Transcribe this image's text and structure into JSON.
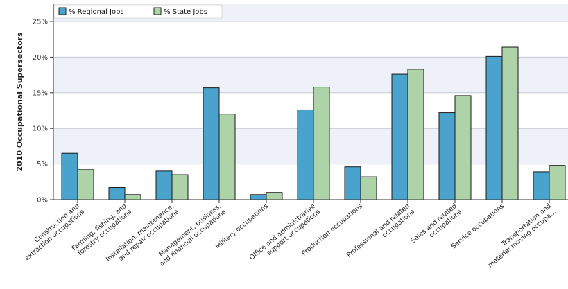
{
  "chart_data": {
    "type": "bar",
    "ylabel": "2010 Occupational Supersectors",
    "ylim": [
      0,
      25
    ],
    "yticks": [
      "0%",
      "5%",
      "10%",
      "15%",
      "20%",
      "25%"
    ],
    "legend_position": "top-left",
    "grid": true,
    "categories": [
      [
        "Construction and",
        "extraction occupations"
      ],
      [
        "Farming, fishing, and",
        "forestry occupations"
      ],
      [
        "Installation, maintenance,",
        "and repair occupations"
      ],
      [
        "Management, business,",
        "and financial occupations"
      ],
      [
        "Military occupations"
      ],
      [
        "Office and administrative",
        "support occupations"
      ],
      [
        "Production occupations"
      ],
      [
        "Professional and related",
        "occupations"
      ],
      [
        "Sales and related",
        "occupations"
      ],
      [
        "Service occupations"
      ],
      [
        "Transportation and",
        "material moving occupa..."
      ]
    ],
    "series": [
      {
        "name": "% Regional Jobs",
        "color": "#4aa3cc",
        "values": [
          6.5,
          1.7,
          4.0,
          15.7,
          0.7,
          12.6,
          4.6,
          17.6,
          12.2,
          20.1,
          3.9
        ]
      },
      {
        "name": "% State Jobs",
        "color": "#aed3a8",
        "values": [
          4.2,
          0.7,
          3.5,
          12.0,
          1.0,
          15.8,
          3.2,
          18.3,
          14.6,
          21.4,
          4.8
        ]
      }
    ]
  }
}
